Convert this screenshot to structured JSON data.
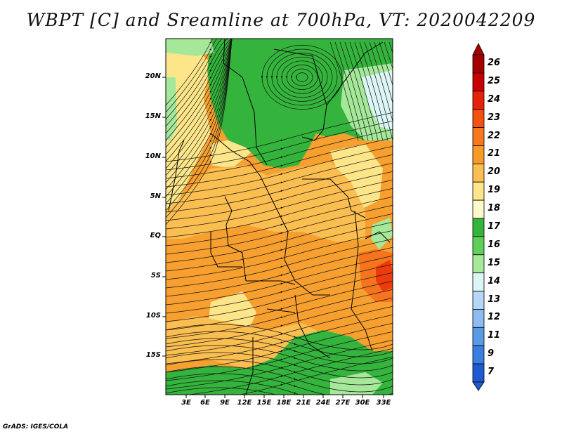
{
  "title": "WBPT [C] and Sreamline at 700hPa, VT: 2020042209",
  "credit": "GrADS: IGES/COLA",
  "lat_labels": [
    "20N",
    "15N",
    "10N",
    "5N",
    "EQ",
    "5S",
    "10S",
    "15S"
  ],
  "lon_labels": [
    "3E",
    "6E",
    "9E",
    "12E",
    "15E",
    "18E",
    "21E",
    "24E",
    "27E",
    "30E",
    "33E"
  ],
  "colorbar": {
    "labels": [
      "26",
      "25",
      "24",
      "23",
      "22",
      "21",
      "20",
      "19",
      "18",
      "17",
      "16",
      "15",
      "14",
      "13",
      "12",
      "11",
      "9",
      "7"
    ],
    "colors": [
      "#a50000",
      "#c80000",
      "#e6220a",
      "#f4500f",
      "#f7781e",
      "#f89a28",
      "#fbbe50",
      "#fde68a",
      "#fffacc",
      "#34b43c",
      "#5fcf5c",
      "#a6e89a",
      "#dcf6f6",
      "#b4d7f5",
      "#8cbcf0",
      "#5a9be6",
      "#3a7ee0",
      "#1f5ad2"
    ]
  },
  "map_colors": {
    "orange": "#f7a030",
    "light_orange": "#fbbe50",
    "yellow": "#fde68a",
    "green": "#34b43c",
    "light_green": "#a6e89a",
    "red": "#e6220a",
    "ocean_blue": "#dcf6f6"
  }
}
